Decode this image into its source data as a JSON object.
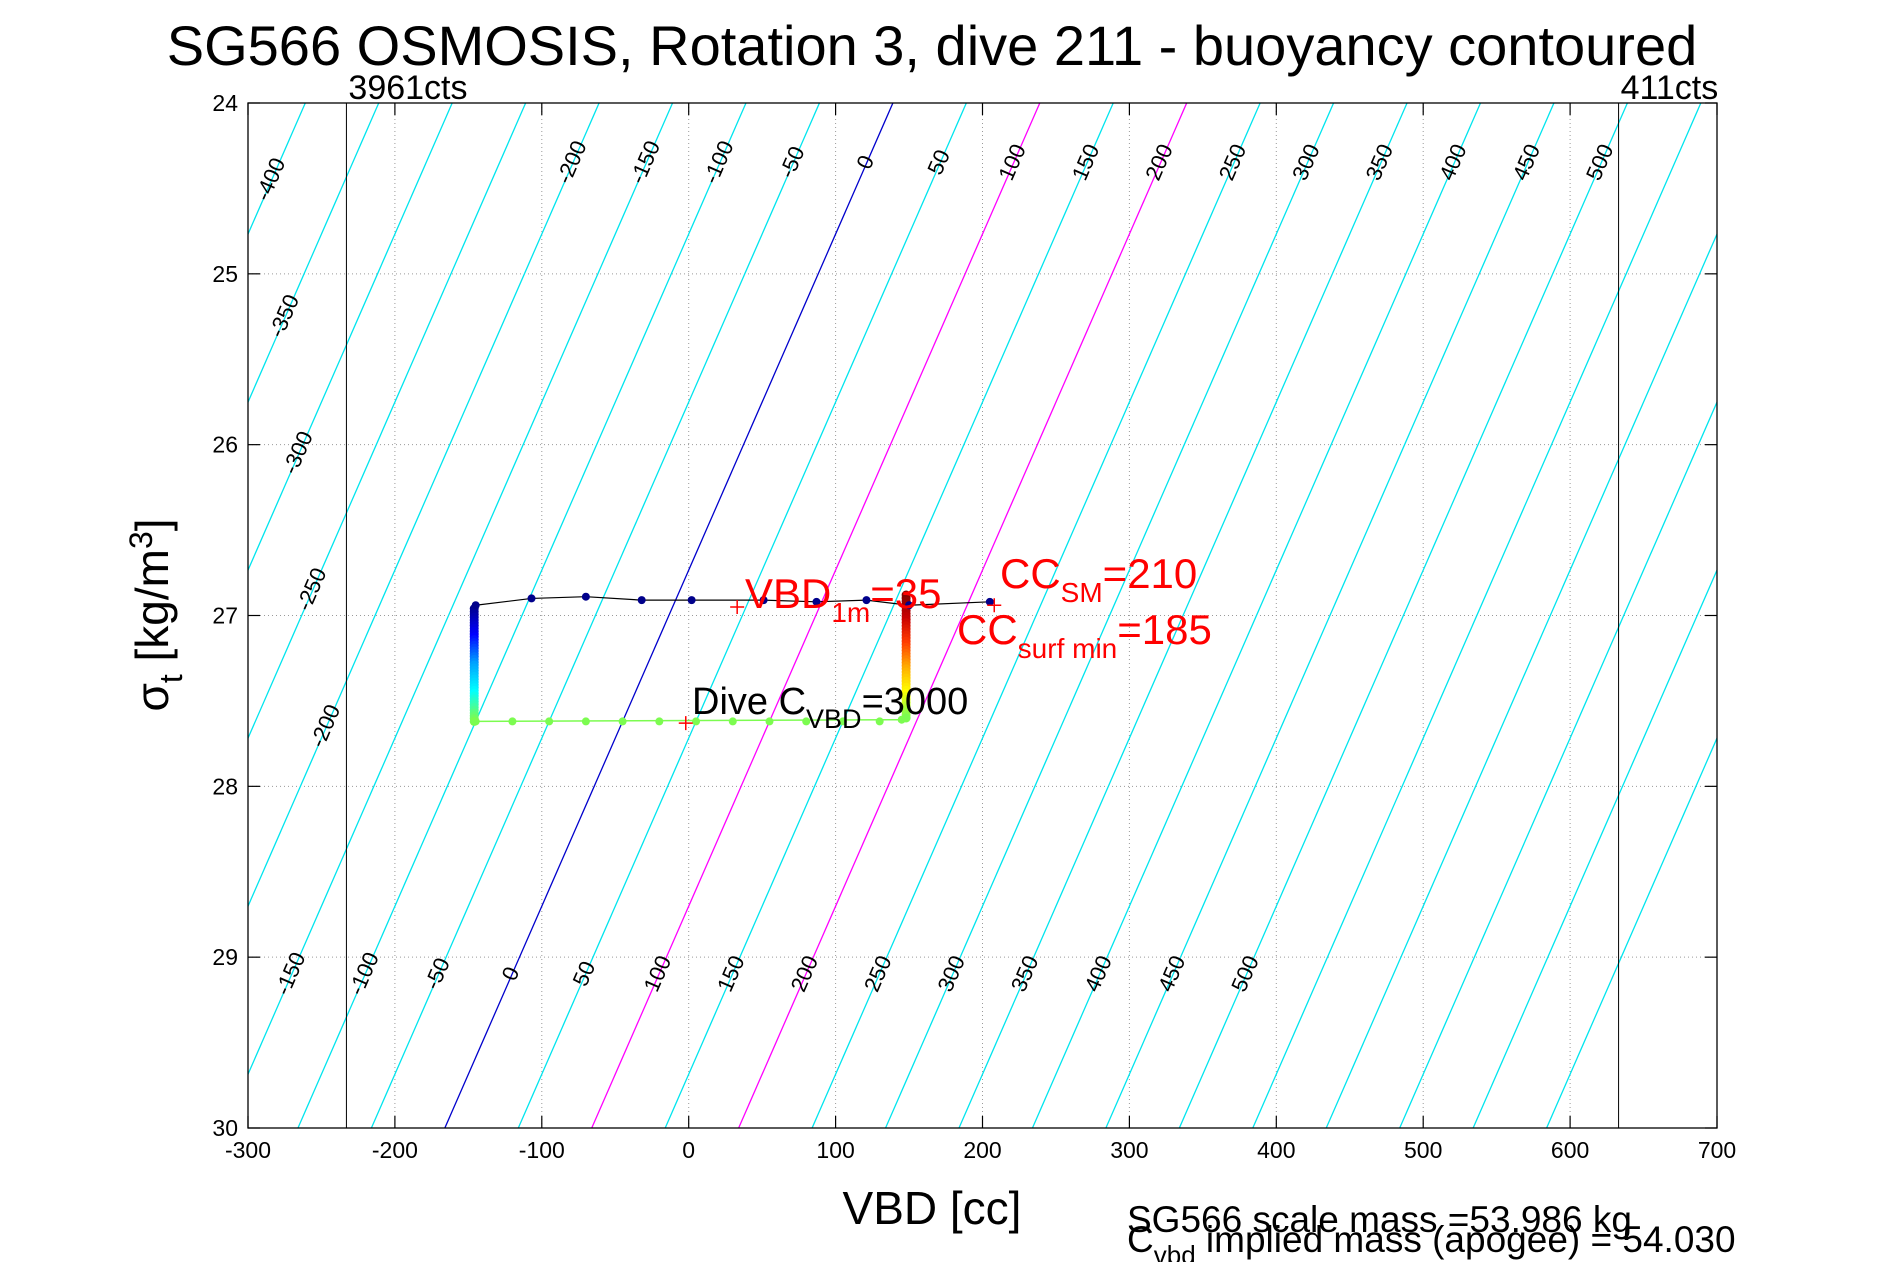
{
  "chart_data": {
    "type": "scatter",
    "title": "SG566 OSMOSIS, Rotation 3, dive 211 - buoyancy contoured",
    "xlabel": "VBD [cc]",
    "ylabel_main": "σ",
    "ylabel_sub": "t",
    "ylabel_unit": " [kg/m",
    "ylabel_sup": "3",
    "ylabel_close": "]",
    "xlim": [
      -300,
      700
    ],
    "ylim": [
      24,
      30
    ],
    "y_reversed": true,
    "grid": true,
    "xticks": [
      -300,
      -200,
      -100,
      0,
      100,
      200,
      300,
      400,
      500,
      600,
      700
    ],
    "yticks": [
      24,
      25,
      26,
      27,
      28,
      29,
      30
    ],
    "buoyancy_contours": {
      "levels": [
        -400,
        -350,
        -300,
        -250,
        -200,
        -150,
        -100,
        -50,
        0,
        50,
        100,
        150,
        200,
        250,
        300,
        350,
        400,
        450,
        500
      ],
      "zero_at_sigma24_vbd": 139,
      "zero_at_sigma30_vbd": -166,
      "color_default": "#00e5ee",
      "color_zero": "#0000cc",
      "magenta_levels": [
        100,
        200
      ],
      "color_magenta": "#ff00ff",
      "top_labels": [
        "-400",
        "-350",
        "-300",
        "-250",
        "-200",
        "-150",
        "-100",
        "-50",
        "0",
        "50",
        "100",
        "150",
        "200",
        "250",
        "300",
        "350",
        "400",
        "450",
        "500"
      ],
      "bottom_labels": [
        "-150",
        "-100",
        "-50",
        "0",
        "50",
        "100",
        "150",
        "200",
        "250",
        "300",
        "350",
        "400",
        "450",
        "500"
      ]
    },
    "count_lines": [
      {
        "vbd": -233,
        "label": "3961cts"
      },
      {
        "vbd": 633,
        "label": "411cts"
      }
    ],
    "series": [
      {
        "description": "upper branch",
        "vbd": [
          -145,
          -107,
          -70,
          -32,
          2,
          51,
          87,
          121,
          150,
          205
        ],
        "sigma": [
          26.94,
          26.9,
          26.89,
          26.91,
          26.91,
          26.91,
          26.92,
          26.91,
          26.94,
          26.92
        ],
        "color": "#00008b"
      },
      {
        "description": "lower branch",
        "vbd": [
          -145,
          -120,
          -95,
          -70,
          -45,
          -20,
          5,
          30,
          55,
          80,
          105,
          130,
          145
        ],
        "sigma": [
          27.62,
          27.62,
          27.62,
          27.62,
          27.62,
          27.62,
          27.62,
          27.62,
          27.62,
          27.62,
          27.62,
          27.62,
          27.61
        ],
        "color": "#7cfc50"
      }
    ],
    "annotations": {
      "vbd1m_main": "VBD",
      "vbd1m_sub": "1m",
      "vbd1m_val": "=35",
      "ccsm_main": "CC",
      "ccsm_sub": "SM",
      "ccsm_val": "=210",
      "ccsurf_main": "CC",
      "ccsurf_sub": "surf min",
      "ccsurf_val": "=185",
      "dive_main": "Dive C",
      "dive_sub": "VBD",
      "dive_val": "=3000",
      "red_color": "#ff0000"
    },
    "markers": [
      {
        "vbd": 33,
        "sigma": 26.95
      },
      {
        "vbd": 208,
        "sigma": 26.94
      },
      {
        "vbd": -2,
        "sigma": 27.63
      }
    ]
  },
  "footer": {
    "scale_mass": "SG566 scale mass =53.986 kg",
    "implied_main": "C",
    "implied_sub": "vbd",
    "implied_rest": " implied mass (apogee) = 54.030"
  }
}
